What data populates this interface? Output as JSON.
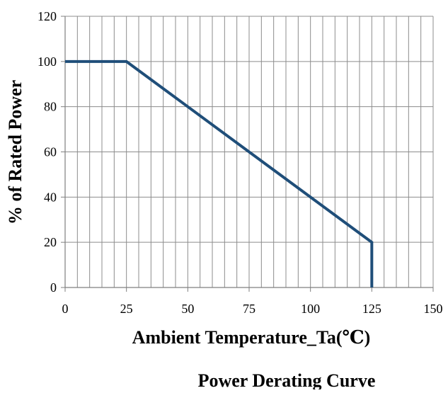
{
  "chart_data": {
    "type": "line",
    "title": "Power Derating Curve",
    "xlabel": "Ambient  Temperature_Ta(℃)",
    "ylabel": "% of Rated Power",
    "xlim": [
      0,
      150
    ],
    "ylim": [
      0,
      120
    ],
    "x_ticks": [
      0,
      25,
      50,
      75,
      100,
      125,
      150
    ],
    "y_ticks": [
      0,
      20,
      40,
      60,
      80,
      100,
      120
    ],
    "x_minor_step": 5,
    "grid": true,
    "line_color": "#1F4E79",
    "series": [
      {
        "x": [
          0,
          25,
          125,
          125
        ],
        "y": [
          100,
          100,
          20,
          0
        ]
      }
    ]
  }
}
